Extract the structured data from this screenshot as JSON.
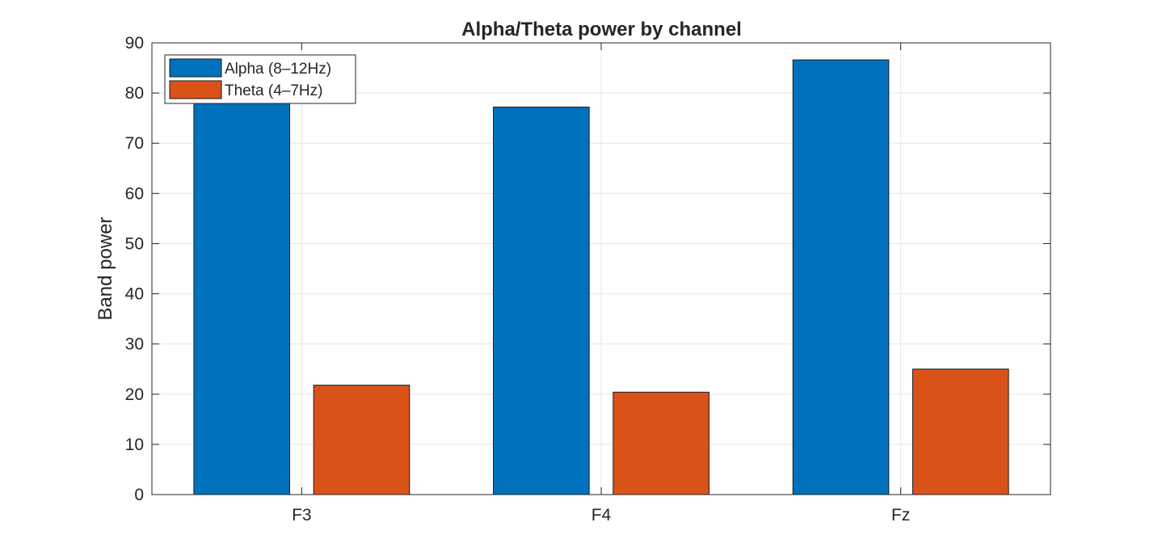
{
  "chart_data": {
    "type": "bar",
    "title": "Alpha/Theta power by channel",
    "xlabel": "",
    "ylabel": "Band power",
    "categories": [
      "F3",
      "F4",
      "Fz"
    ],
    "series": [
      {
        "name": "Alpha (8–12Hz)",
        "values": [
          80.5,
          77.2,
          86.6
        ],
        "color": "#0072BD"
      },
      {
        "name": "Theta (4–7Hz)",
        "values": [
          21.8,
          20.4,
          25.0
        ],
        "color": "#D95319"
      }
    ],
    "ylim": [
      0,
      90
    ],
    "yticks": [
      0,
      10,
      20,
      30,
      40,
      50,
      60,
      70,
      80,
      90
    ],
    "grid": true,
    "legend_position": "top-left"
  }
}
